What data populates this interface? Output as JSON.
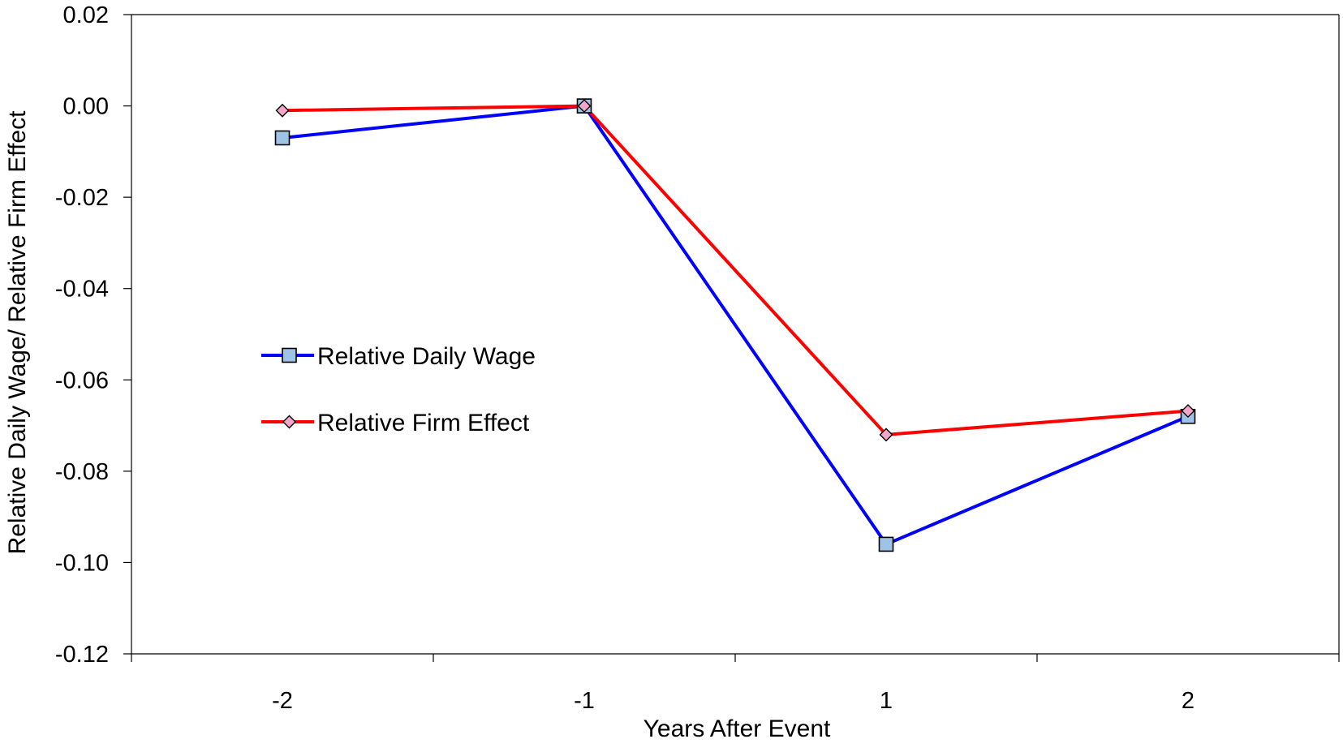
{
  "chart_data": {
    "type": "line",
    "categories": [
      "-2",
      "-1",
      "1",
      "2"
    ],
    "series": [
      {
        "name": "Relative Daily Wage",
        "values": [
          -0.007,
          0.0,
          -0.096,
          -0.068
        ],
        "color": "#0000ff",
        "marker": "square",
        "marker_color": "#9dc3e6"
      },
      {
        "name": "Relative Firm Effect",
        "values": [
          -0.001,
          0.0,
          -0.072,
          -0.0668
        ],
        "color": "#ff0000",
        "marker": "diamond",
        "marker_color": "#f4a6c8"
      }
    ],
    "title": "",
    "xlabel": "Years After Event",
    "ylabel": "Relative Daily Wage/ Relative Firm Effect",
    "ylim": [
      -0.12,
      0.02
    ],
    "yticks": [
      0.02,
      0.0,
      -0.02,
      -0.04,
      -0.06,
      -0.08,
      -0.1,
      -0.12
    ],
    "ytick_labels": [
      "0.02",
      "0.00",
      "-0.02",
      "-0.04",
      "-0.06",
      "-0.08",
      "-0.10",
      "-0.12"
    ],
    "grid": false,
    "legend_position": "center-left"
  }
}
